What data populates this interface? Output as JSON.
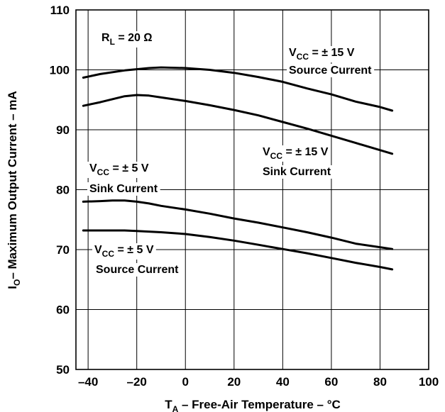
{
  "chart_data": {
    "type": "line",
    "xlabel": {
      "main": "T",
      "sub": "A",
      "rest": " – Free-Air Temperature – °C"
    },
    "ylabel": {
      "main": "I",
      "sub": "O",
      "rest": "– Maximum Output Current – mA"
    },
    "xlim": [
      -45,
      100
    ],
    "ylim": [
      50,
      110
    ],
    "x_ticks": [
      -40,
      -20,
      0,
      20,
      40,
      60,
      80,
      100
    ],
    "y_ticks": [
      50,
      60,
      70,
      80,
      90,
      100,
      110
    ],
    "grid": true,
    "condition": {
      "main": "R",
      "sub": "L",
      "rest": " = 20 Ω"
    },
    "series": [
      {
        "name": "VCC = ± 15 V Source Current",
        "x": [
          -42,
          -35,
          -25,
          -15,
          -10,
          0,
          10,
          20,
          30,
          40,
          50,
          60,
          70,
          80,
          85
        ],
        "y": [
          98.7,
          99.3,
          99.9,
          100.3,
          100.4,
          100.3,
          100.0,
          99.5,
          98.8,
          98.0,
          96.9,
          95.9,
          94.7,
          93.8,
          93.2
        ]
      },
      {
        "name": "VCC = ± 15 V Sink Current",
        "x": [
          -42,
          -35,
          -25,
          -20,
          -15,
          -10,
          0,
          10,
          20,
          30,
          40,
          50,
          60,
          70,
          80,
          85
        ],
        "y": [
          94.0,
          94.6,
          95.6,
          95.8,
          95.7,
          95.4,
          94.8,
          94.1,
          93.3,
          92.4,
          91.3,
          90.2,
          89.0,
          87.8,
          86.6,
          86.0
        ]
      },
      {
        "name": "VCC = ± 5 V Sink Current",
        "x": [
          -42,
          -35,
          -30,
          -25,
          -20,
          -15,
          -10,
          0,
          10,
          20,
          30,
          40,
          50,
          60,
          70,
          80,
          85
        ],
        "y": [
          78.0,
          78.1,
          78.2,
          78.2,
          78.0,
          77.7,
          77.3,
          76.7,
          76.0,
          75.2,
          74.5,
          73.7,
          72.9,
          72.0,
          71.0,
          70.4,
          70.1
        ]
      },
      {
        "name": "VCC = ± 5 V Source Current",
        "x": [
          -42,
          -35,
          -25,
          -20,
          -15,
          -10,
          0,
          10,
          20,
          30,
          40,
          50,
          60,
          70,
          80,
          85
        ],
        "y": [
          73.2,
          73.2,
          73.2,
          73.1,
          73.0,
          72.9,
          72.6,
          72.1,
          71.5,
          70.8,
          70.1,
          69.4,
          68.6,
          67.8,
          67.1,
          66.7
        ]
      }
    ],
    "annotations": [
      {
        "line1": {
          "main": "V",
          "sub": "CC",
          "rest": " = ± 15 V"
        },
        "line2": "Source Current"
      },
      {
        "line1": {
          "main": "V",
          "sub": "CC",
          "rest": " = ± 15 V"
        },
        "line2": "Sink Current"
      },
      {
        "line1": {
          "main": "V",
          "sub": "CC",
          "rest": " = ± 5 V"
        },
        "line2": "Sink Current"
      },
      {
        "line1": {
          "main": "V",
          "sub": "CC",
          "rest": " = ± 5 V"
        },
        "line2": "Source Current"
      }
    ]
  }
}
